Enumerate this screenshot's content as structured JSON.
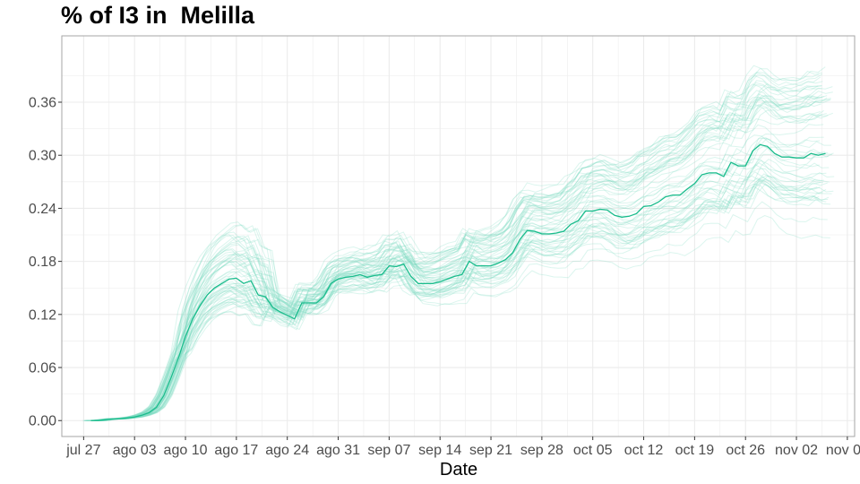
{
  "chart_data": {
    "type": "line",
    "title": "% of I3 in  Melilla",
    "xlabel": "Date",
    "ylabel": "",
    "x_tick_labels": [
      "jul 27",
      "ago 03",
      "ago 10",
      "ago 17",
      "ago 24",
      "ago 31",
      "sep 07",
      "sep 14",
      "sep 21",
      "sep 28",
      "oct 05",
      "oct 12",
      "oct 19",
      "oct 26",
      "nov 02",
      "nov 09"
    ],
    "y_tick_labels": [
      "0.00",
      "0.06",
      "0.12",
      "0.18",
      "0.24",
      "0.30",
      "0.36"
    ],
    "xlim": [
      "2020-07-24",
      "2020-11-10"
    ],
    "ylim": [
      -0.018,
      0.435
    ],
    "grid": true,
    "legend": "none",
    "colors": {
      "main_series": "#1abc8c",
      "simulations": "#7fdcc3",
      "panel_border": "#a6a6a6",
      "grid": "#ebebeb"
    },
    "series": [
      {
        "x": [
          "2020-07-28",
          "2020-07-29",
          "2020-07-30",
          "2020-07-31",
          "2020-08-01",
          "2020-08-02",
          "2020-08-03",
          "2020-08-04",
          "2020-08-05",
          "2020-08-06",
          "2020-08-07",
          "2020-08-08",
          "2020-08-09",
          "2020-08-10",
          "2020-08-11",
          "2020-08-12",
          "2020-08-13",
          "2020-08-14",
          "2020-08-15",
          "2020-08-16",
          "2020-08-17",
          "2020-08-18",
          "2020-08-19",
          "2020-08-20",
          "2020-08-21",
          "2020-08-22",
          "2020-08-23",
          "2020-08-24",
          "2020-08-25",
          "2020-08-26",
          "2020-08-27",
          "2020-08-28",
          "2020-08-29",
          "2020-08-30",
          "2020-08-31",
          "2020-09-01",
          "2020-09-02",
          "2020-09-03",
          "2020-09-04",
          "2020-09-05",
          "2020-09-06",
          "2020-09-07",
          "2020-09-08",
          "2020-09-09",
          "2020-09-10",
          "2020-09-11",
          "2020-09-12",
          "2020-09-13",
          "2020-09-14",
          "2020-09-15",
          "2020-09-16",
          "2020-09-17",
          "2020-09-18",
          "2020-09-19",
          "2020-09-20",
          "2020-09-21",
          "2020-09-22",
          "2020-09-23",
          "2020-09-24",
          "2020-09-25",
          "2020-09-26",
          "2020-09-27",
          "2020-09-28",
          "2020-09-29",
          "2020-09-30",
          "2020-10-01",
          "2020-10-02",
          "2020-10-03",
          "2020-10-04",
          "2020-10-05",
          "2020-10-06",
          "2020-10-07",
          "2020-10-08",
          "2020-10-09",
          "2020-10-10",
          "2020-10-11",
          "2020-10-12",
          "2020-10-13",
          "2020-10-14",
          "2020-10-15",
          "2020-10-16",
          "2020-10-17",
          "2020-10-18",
          "2020-10-19",
          "2020-10-20",
          "2020-10-21",
          "2020-10-22",
          "2020-10-23",
          "2020-10-24",
          "2020-10-25",
          "2020-10-26",
          "2020-10-27",
          "2020-10-28",
          "2020-10-29",
          "2020-10-30",
          "2020-10-31",
          "2020-11-01",
          "2020-11-02",
          "2020-11-03",
          "2020-11-04",
          "2020-11-05",
          "2020-11-06"
        ],
        "values": [
          0.0,
          0.0,
          0.001,
          0.002,
          0.002,
          0.003,
          0.004,
          0.006,
          0.009,
          0.015,
          0.028,
          0.048,
          0.07,
          0.095,
          0.115,
          0.13,
          0.142,
          0.15,
          0.155,
          0.16,
          0.161,
          0.155,
          0.158,
          0.142,
          0.14,
          0.128,
          0.123,
          0.119,
          0.115,
          0.133,
          0.133,
          0.133,
          0.14,
          0.155,
          0.16,
          0.162,
          0.163,
          0.165,
          0.162,
          0.164,
          0.165,
          0.175,
          0.174,
          0.177,
          0.163,
          0.155,
          0.155,
          0.155,
          0.157,
          0.16,
          0.163,
          0.165,
          0.18,
          0.175,
          0.175,
          0.175,
          0.178,
          0.182,
          0.19,
          0.205,
          0.215,
          0.214,
          0.211,
          0.211,
          0.212,
          0.214,
          0.222,
          0.226,
          0.237,
          0.237,
          0.239,
          0.238,
          0.232,
          0.23,
          0.231,
          0.234,
          0.242,
          0.243,
          0.247,
          0.253,
          0.255,
          0.255,
          0.262,
          0.268,
          0.278,
          0.28,
          0.28,
          0.276,
          0.292,
          0.288,
          0.288,
          0.305,
          0.312,
          0.31,
          0.302,
          0.298,
          0.298,
          0.297,
          0.297,
          0.302,
          0.3,
          0.302
        ]
      }
    ]
  }
}
